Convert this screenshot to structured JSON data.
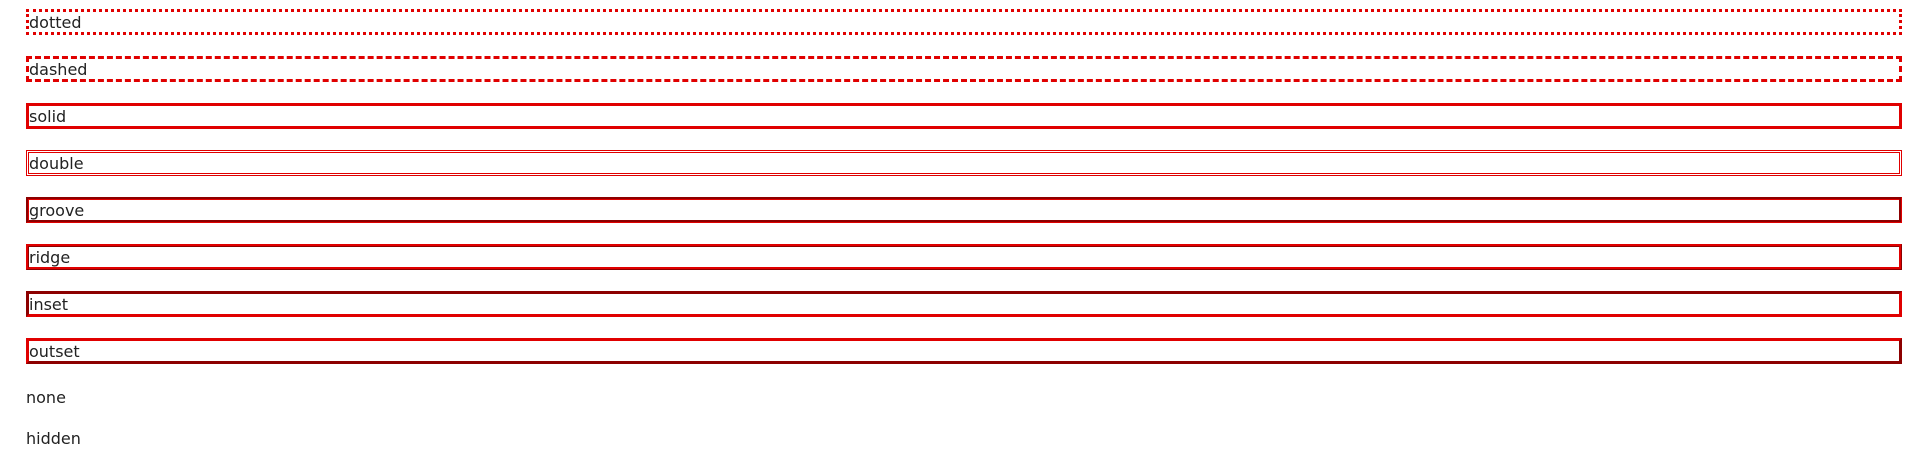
{
  "border_color": "#e00000",
  "boxes": [
    {
      "label": "dotted"
    },
    {
      "label": "dashed"
    },
    {
      "label": "solid"
    },
    {
      "label": "double"
    },
    {
      "label": "groove"
    },
    {
      "label": "ridge"
    },
    {
      "label": "inset"
    },
    {
      "label": "outset"
    },
    {
      "label": "none"
    },
    {
      "label": "hidden"
    }
  ]
}
